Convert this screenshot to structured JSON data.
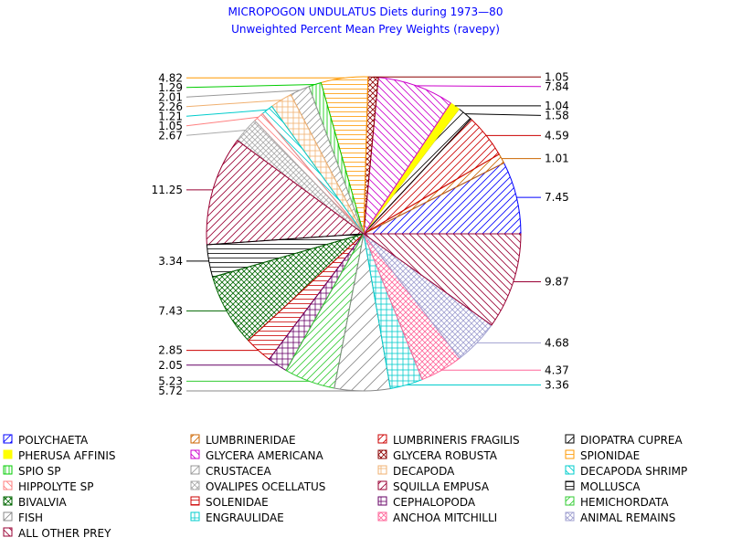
{
  "chart_data": {
    "type": "pie",
    "title": "MICROPOGON UNDULATUS Diets during 1973—80",
    "subtitle": "Unweighted Percent Mean Prey Weights (ravepy)",
    "slices": [
      {
        "label": "POLYCHAETA",
        "value": 7.45,
        "value_label": "7.45",
        "color": "#0000ff",
        "pattern": "hatch-up"
      },
      {
        "label": "LUMBRINERIDAE",
        "value": 1.01,
        "value_label": "1.01",
        "color": "#cc6600",
        "pattern": "hatch-up"
      },
      {
        "label": "LUMBRINERIS FRAGILIS",
        "value": 4.59,
        "value_label": "4.59",
        "color": "#cc0000",
        "pattern": "hatch-up"
      },
      {
        "label": "DIOPATRA CUPREA",
        "value": 1.58,
        "value_label": "1.58",
        "color": "#000000",
        "pattern": "hatch-up-wide"
      },
      {
        "label": "PHERUSA AFFINIS",
        "value": 1.04,
        "value_label": "1.04",
        "color": "#ffff00",
        "pattern": "solid"
      },
      {
        "label": "GLYCERA AMERICANA",
        "value": 7.84,
        "value_label": "7.84",
        "color": "#cc00cc",
        "pattern": "hatch-down"
      },
      {
        "label": "GLYCERA ROBUSTA",
        "value": 1.05,
        "value_label": "1.05",
        "color": "#8b0000",
        "pattern": "crosshatch-diag"
      },
      {
        "label": "SPIONIDAE",
        "value": 4.82,
        "value_label": "4.82",
        "color": "#ff9900",
        "pattern": "hlines"
      },
      {
        "label": "SPIO SP",
        "value": 1.29,
        "value_label": "1.29",
        "color": "#00cc00",
        "pattern": "vlines"
      },
      {
        "label": "CRUSTACEA",
        "value": 2.01,
        "value_label": "2.01",
        "color": "#999999",
        "pattern": "hatch-up"
      },
      {
        "label": "DECAPODA",
        "value": 2.26,
        "value_label": "2.26",
        "color": "#f0b070",
        "pattern": "grid"
      },
      {
        "label": "DECAPODA SHRIMP",
        "value": 1.21,
        "value_label": "1.21",
        "color": "#00cccc",
        "pattern": "hatch-down"
      },
      {
        "label": "HIPPOLYTE SP",
        "value": 1.05,
        "value_label": "1.05",
        "color": "#ff8080",
        "pattern": "hatch-down"
      },
      {
        "label": "OVALIPES OCELLATUS",
        "value": 2.67,
        "value_label": "2.67",
        "color": "#aaaaaa",
        "pattern": "crosshatch-diag"
      },
      {
        "label": "SQUILLA EMPUSA",
        "value": 11.25,
        "value_label": "11.25",
        "color": "#990033",
        "pattern": "hatch-up"
      },
      {
        "label": "MOLLUSCA",
        "value": 3.34,
        "value_label": "3.34",
        "color": "#000000",
        "pattern": "hlines"
      },
      {
        "label": "BIVALVIA",
        "value": 7.43,
        "value_label": "7.43",
        "color": "#006600",
        "pattern": "crosshatch-diag"
      },
      {
        "label": "SOLENIDAE",
        "value": 2.85,
        "value_label": "2.85",
        "color": "#cc0000",
        "pattern": "hlines"
      },
      {
        "label": "CEPHALOPODA",
        "value": 2.05,
        "value_label": "2.05",
        "color": "#660066",
        "pattern": "grid"
      },
      {
        "label": "HEMICHORDATA",
        "value": 5.23,
        "value_label": "5.23",
        "color": "#33cc33",
        "pattern": "hatch-up"
      },
      {
        "label": "FISH",
        "value": 5.72,
        "value_label": "5.72",
        "color": "#888888",
        "pattern": "hatch-up-wide"
      },
      {
        "label": "ENGRAULIDAE",
        "value": 3.36,
        "value_label": "3.36",
        "color": "#00cccc",
        "pattern": "grid"
      },
      {
        "label": "ANCHOA MITCHILLI",
        "value": 4.37,
        "value_label": "4.37",
        "color": "#ff6699",
        "pattern": "crosshatch-diag"
      },
      {
        "label": "ANIMAL REMAINS",
        "value": 4.68,
        "value_label": "4.68",
        "color": "#a0a0d0",
        "pattern": "crosshatch-diag"
      },
      {
        "label": "ALL OTHER PREY",
        "value": 9.87,
        "value_label": "9.87",
        "color": "#990033",
        "pattern": "hatch-down"
      }
    ],
    "legend_placement": "bottom",
    "start": "3 o'clock, clockwise"
  }
}
